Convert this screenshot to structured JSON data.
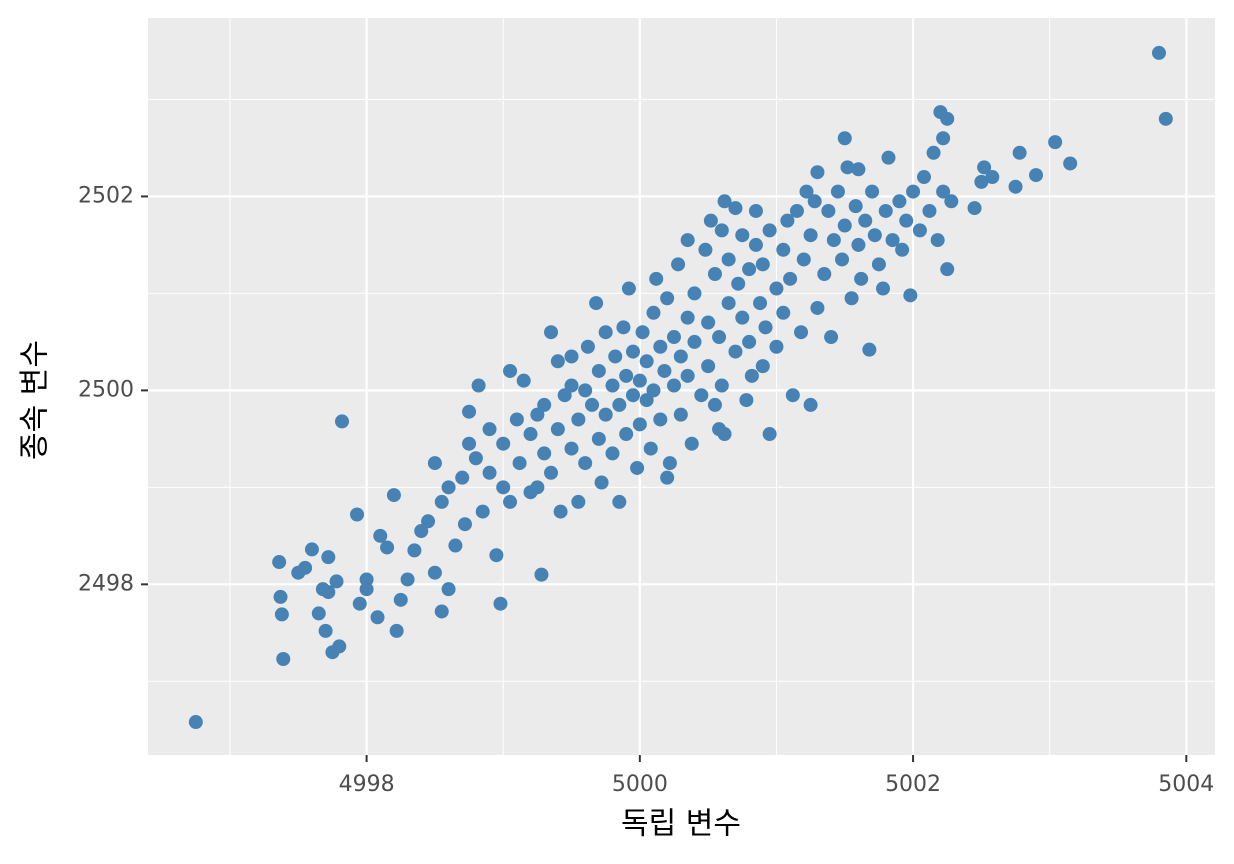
{
  "chart_data": {
    "type": "scatter",
    "x_label": "독립 변수",
    "y_label": "종속 변수",
    "color": "#4682b4",
    "xlim": [
      4996.4,
      5004.21
    ],
    "ylim": [
      2496.24,
      2503.84
    ],
    "xticks": [
      4998,
      5000,
      5002,
      5004
    ],
    "yticks": [
      2498,
      2500,
      2502
    ],
    "xminor": [
      4997,
      4999,
      5001,
      5003
    ],
    "yminor": [
      2497,
      2499,
      2501,
      2503
    ],
    "grid": true,
    "x": [
      4996.75,
      4997.36,
      4997.37,
      4997.38,
      4997.39,
      4997.55,
      4997.6,
      4997.5,
      4997.65,
      4997.7,
      4997.72,
      4997.75,
      4997.8,
      4997.78,
      4997.82,
      4997.95,
      4998.0,
      4998.0,
      4997.68,
      4997.72,
      4998.08,
      4998.15,
      4998.22,
      4998.25,
      4998.3,
      4998.35,
      4998.4,
      4998.2,
      4997.93,
      4998.1,
      4998.45,
      4998.5,
      4998.55,
      4998.5,
      4998.6,
      4998.55,
      4998.6,
      4998.65,
      4998.7,
      4998.72,
      4998.75,
      4998.8,
      4998.82,
      4998.75,
      4998.85,
      4998.9,
      4998.9,
      4998.95,
      4998.98,
      4999.0,
      4999.0,
      4999.05,
      4999.05,
      4999.1,
      4999.12,
      4999.15,
      4999.2,
      4999.2,
      4999.25,
      4999.28,
      4999.3,
      4999.3,
      4999.35,
      4999.35,
      4999.4,
      4999.4,
      4999.42,
      4999.45,
      4999.5,
      4999.5,
      4999.55,
      4999.55,
      4999.6,
      4999.6,
      4999.62,
      4999.65,
      4999.68,
      4999.7,
      4999.7,
      4999.72,
      4999.75,
      4999.75,
      4999.8,
      4999.8,
      4999.82,
      4999.85,
      4999.85,
      4999.88,
      4999.9,
      4999.9,
      4999.92,
      4999.95,
      4999.95,
      4999.98,
      5000.0,
      5000.0,
      5000.02,
      5000.05,
      5000.05,
      5000.08,
      5000.1,
      5000.1,
      5000.12,
      5000.15,
      5000.15,
      5000.18,
      5000.2,
      5000.22,
      5000.25,
      5000.25,
      5000.28,
      5000.3,
      5000.3,
      5000.35,
      5000.35,
      5000.38,
      5000.4,
      5000.4,
      5000.45,
      5000.48,
      5000.5,
      5000.5,
      5000.55,
      5000.55,
      5000.58,
      5000.6,
      5000.6,
      5000.62,
      5000.65,
      5000.65,
      5000.7,
      5000.72,
      5000.75,
      5000.75,
      5000.78,
      5000.8,
      5000.8,
      5000.82,
      5000.85,
      5000.85,
      5000.88,
      5000.9,
      5000.9,
      5000.92,
      5000.95,
      5000.95,
      5001.0,
      5001.0,
      5001.05,
      5001.05,
      5001.08,
      5001.1,
      5001.12,
      5001.15,
      5001.18,
      5001.2,
      5001.22,
      5001.25,
      5001.25,
      5001.3,
      5001.3,
      5001.35,
      5001.38,
      5001.4,
      5001.42,
      5001.45,
      5001.48,
      5001.5,
      5001.5,
      5001.52,
      5001.55,
      5001.58,
      5001.6,
      5001.62,
      5001.65,
      5001.68,
      5001.7,
      5001.72,
      5001.75,
      5001.78,
      5001.8,
      5001.82,
      5001.85,
      5001.9,
      5001.92,
      5001.95,
      5001.98,
      5002.0,
      5002.05,
      5002.08,
      5002.12,
      5002.15,
      5002.18,
      5002.2,
      5002.22,
      5002.22,
      5002.25,
      5002.25,
      5002.28,
      5002.45,
      5002.5,
      5002.52,
      5002.58,
      5002.75,
      5002.78,
      5002.9,
      5003.04,
      5003.15,
      5003.8,
      5003.85,
      5000.52,
      5000.7,
      5001.28,
      5001.6,
      5000.35,
      4999.25,
      4999.5,
      5000.2,
      5000.58,
      5000.62
    ],
    "values": [
      2496.58,
      2498.23,
      2497.87,
      2497.69,
      2497.23,
      2498.17,
      2498.36,
      2498.12,
      2497.7,
      2497.52,
      2497.92,
      2497.3,
      2497.36,
      2498.03,
      2499.68,
      2497.8,
      2498.05,
      2497.95,
      2497.95,
      2498.28,
      2497.66,
      2498.38,
      2497.52,
      2497.84,
      2498.05,
      2498.35,
      2498.55,
      2498.92,
      2498.72,
      2498.5,
      2498.65,
      2498.12,
      2498.85,
      2499.25,
      2499.0,
      2497.72,
      2497.95,
      2498.4,
      2499.1,
      2498.62,
      2499.45,
      2499.3,
      2500.05,
      2499.78,
      2498.75,
      2499.15,
      2499.6,
      2498.3,
      2497.8,
      2499.0,
      2499.45,
      2500.2,
      2498.85,
      2499.7,
      2499.25,
      2500.1,
      2498.95,
      2499.55,
      2499.0,
      2498.1,
      2499.85,
      2499.35,
      2500.6,
      2499.15,
      2500.3,
      2499.6,
      2498.75,
      2499.95,
      2499.4,
      2500.35,
      2499.7,
      2498.85,
      2500.0,
      2499.25,
      2500.45,
      2499.85,
      2500.9,
      2499.5,
      2500.2,
      2499.05,
      2499.75,
      2500.6,
      2500.05,
      2499.35,
      2500.35,
      2499.85,
      2498.85,
      2500.65,
      2500.15,
      2499.55,
      2501.05,
      2499.95,
      2500.4,
      2499.2,
      2500.1,
      2499.65,
      2500.6,
      2499.9,
      2500.3,
      2499.4,
      2500.8,
      2500.0,
      2501.15,
      2500.45,
      2499.7,
      2500.2,
      2500.95,
      2499.25,
      2500.55,
      2500.05,
      2501.3,
      2500.35,
      2499.75,
      2500.75,
      2500.15,
      2499.45,
      2501.0,
      2500.5,
      2499.95,
      2501.45,
      2500.7,
      2500.25,
      2501.2,
      2499.85,
      2500.55,
      2501.65,
      2500.05,
      2499.55,
      2500.9,
      2501.35,
      2500.4,
      2501.1,
      2501.6,
      2500.75,
      2499.9,
      2501.25,
      2500.5,
      2500.15,
      2501.5,
      2501.85,
      2500.9,
      2501.3,
      2500.25,
      2500.65,
      2501.65,
      2499.55,
      2501.05,
      2500.45,
      2501.45,
      2500.8,
      2501.75,
      2501.15,
      2499.95,
      2501.85,
      2500.6,
      2501.35,
      2502.05,
      2499.85,
      2501.6,
      2500.85,
      2502.25,
      2501.2,
      2501.85,
      2500.55,
      2501.55,
      2502.05,
      2501.35,
      2502.6,
      2501.7,
      2502.3,
      2500.95,
      2501.9,
      2501.5,
      2501.15,
      2501.75,
      2500.42,
      2502.05,
      2501.6,
      2501.3,
      2501.05,
      2501.85,
      2502.4,
      2501.55,
      2501.95,
      2501.45,
      2501.75,
      2500.98,
      2502.05,
      2501.65,
      2502.2,
      2501.85,
      2502.45,
      2501.55,
      2502.87,
      2502.6,
      2502.05,
      2501.25,
      2502.8,
      2501.95,
      2501.88,
      2502.15,
      2502.3,
      2502.2,
      2502.1,
      2502.45,
      2502.22,
      2502.56,
      2502.34,
      2503.48,
      2502.8,
      2501.75,
      2501.88,
      2501.95,
      2502.28,
      2501.55,
      2499.75,
      2500.05,
      2499.1,
      2499.6,
      2501.95
    ]
  }
}
